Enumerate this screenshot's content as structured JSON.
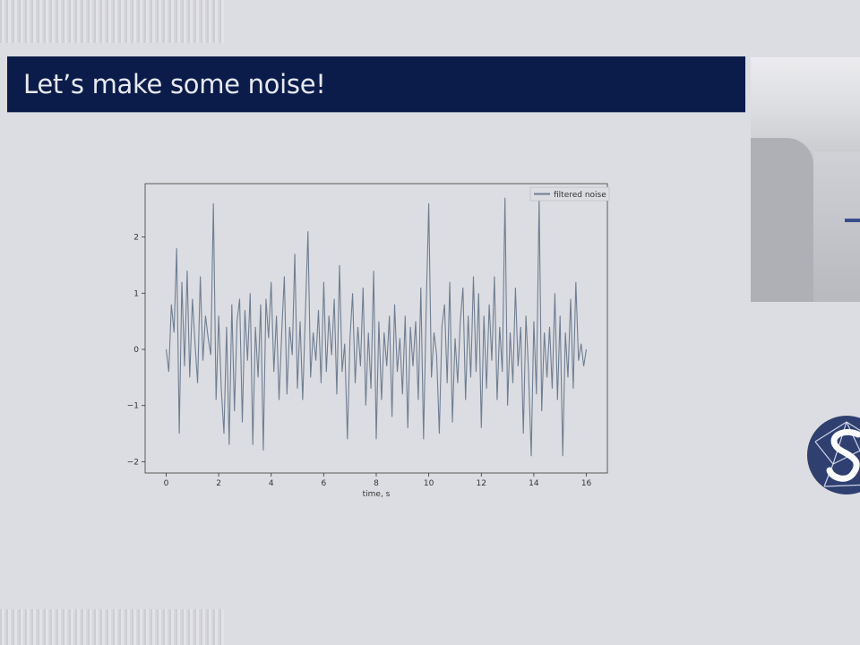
{
  "slide": {
    "title": "Let’s make some noise!"
  },
  "colors": {
    "header_bg": "#0b1c4a",
    "series_line": "#6f7e92",
    "background": "#dcdde2"
  },
  "icons": {
    "logo": "logo-icon",
    "video": "presenter-video"
  },
  "chart_data": {
    "type": "line",
    "title": "",
    "xlabel": "time, s",
    "ylabel": "",
    "xlim": [
      -0.8,
      16.8
    ],
    "ylim": [
      -2.2,
      2.95
    ],
    "xticks": [
      0,
      2,
      4,
      6,
      8,
      10,
      12,
      14,
      16
    ],
    "xtick_labels": [
      "0",
      "2",
      "4",
      "6",
      "8",
      "10",
      "12",
      "14",
      "16"
    ],
    "yticks": [
      -2,
      -1,
      0,
      1,
      2
    ],
    "ytick_labels": [
      "−2",
      "−1",
      "0",
      "1",
      "2"
    ],
    "legend": {
      "position": "top-right",
      "entries": [
        "filtered noise"
      ]
    },
    "series": [
      {
        "name": "filtered noise",
        "x": [
          0,
          0.1,
          0.2,
          0.3,
          0.4,
          0.5,
          0.6,
          0.7,
          0.8,
          0.9,
          1.0,
          1.1,
          1.2,
          1.3,
          1.4,
          1.5,
          1.6,
          1.7,
          1.8,
          1.9,
          2.0,
          2.1,
          2.2,
          2.3,
          2.4,
          2.5,
          2.6,
          2.7,
          2.8,
          2.9,
          3.0,
          3.1,
          3.2,
          3.3,
          3.4,
          3.5,
          3.6,
          3.7,
          3.8,
          3.9,
          4.0,
          4.1,
          4.2,
          4.3,
          4.4,
          4.5,
          4.6,
          4.7,
          4.8,
          4.9,
          5.0,
          5.1,
          5.2,
          5.3,
          5.4,
          5.5,
          5.6,
          5.7,
          5.8,
          5.9,
          6.0,
          6.1,
          6.2,
          6.3,
          6.4,
          6.5,
          6.6,
          6.7,
          6.8,
          6.9,
          7.0,
          7.1,
          7.2,
          7.3,
          7.4,
          7.5,
          7.6,
          7.7,
          7.8,
          7.9,
          8.0,
          8.1,
          8.2,
          8.3,
          8.4,
          8.5,
          8.6,
          8.7,
          8.8,
          8.9,
          9.0,
          9.1,
          9.2,
          9.3,
          9.4,
          9.5,
          9.6,
          9.7,
          9.8,
          9.9,
          10.0,
          10.1,
          10.2,
          10.3,
          10.4,
          10.5,
          10.6,
          10.7,
          10.8,
          10.9,
          11.0,
          11.1,
          11.2,
          11.3,
          11.4,
          11.5,
          11.6,
          11.7,
          11.8,
          11.9,
          12.0,
          12.1,
          12.2,
          12.3,
          12.4,
          12.5,
          12.6,
          12.7,
          12.8,
          12.9,
          13.0,
          13.1,
          13.2,
          13.3,
          13.4,
          13.5,
          13.6,
          13.7,
          13.8,
          13.9,
          14.0,
          14.1,
          14.2,
          14.3,
          14.4,
          14.5,
          14.6,
          14.7,
          14.8,
          14.9,
          15.0,
          15.1,
          15.2,
          15.3,
          15.4,
          15.5,
          15.6,
          15.7,
          15.8,
          15.9,
          16.0
        ],
        "values": [
          0.0,
          -0.4,
          0.8,
          0.3,
          1.8,
          -1.5,
          1.2,
          -0.3,
          1.4,
          -0.5,
          0.9,
          0.1,
          -0.6,
          1.3,
          -0.2,
          0.6,
          0.2,
          -0.1,
          2.6,
          -0.9,
          0.6,
          -0.7,
          -1.5,
          0.4,
          -1.7,
          0.8,
          -1.1,
          0.5,
          0.9,
          -1.3,
          0.7,
          -0.2,
          1.0,
          -1.7,
          0.4,
          -0.5,
          0.8,
          -1.8,
          0.9,
          0.2,
          1.2,
          -0.4,
          0.6,
          -0.9,
          0.3,
          1.3,
          -0.8,
          0.4,
          -0.1,
          1.7,
          -0.7,
          0.5,
          -0.9,
          0.6,
          2.1,
          -0.5,
          0.3,
          -0.2,
          0.7,
          -0.6,
          1.2,
          -0.4,
          0.6,
          -0.1,
          0.9,
          -0.8,
          1.5,
          -0.4,
          0.1,
          -1.6,
          0.2,
          1.0,
          -0.6,
          0.4,
          -0.3,
          1.1,
          -1.0,
          0.3,
          -0.7,
          1.4,
          -1.6,
          0.5,
          -0.9,
          0.3,
          -0.3,
          0.6,
          -1.2,
          0.8,
          -0.4,
          0.2,
          -0.8,
          0.6,
          -1.4,
          0.4,
          -0.3,
          0.5,
          -0.9,
          1.1,
          -1.6,
          0.7,
          2.6,
          -0.5,
          0.3,
          -0.1,
          -1.5,
          0.4,
          0.8,
          -0.6,
          1.2,
          -1.3,
          0.2,
          -0.6,
          0.5,
          1.1,
          -0.9,
          0.6,
          -0.5,
          1.3,
          -0.4,
          1.0,
          -1.4,
          0.6,
          -0.7,
          0.8,
          -0.2,
          1.3,
          -0.9,
          0.4,
          -0.4,
          2.7,
          -1.0,
          0.3,
          -0.6,
          1.1,
          -0.3,
          0.4,
          -1.5,
          0.6,
          -0.4,
          -1.9,
          0.5,
          -0.8,
          2.7,
          -1.1,
          0.3,
          -0.5,
          0.4,
          -0.7,
          1.0,
          -0.9,
          0.6,
          -1.9,
          0.3,
          -0.5,
          0.9,
          -0.7,
          1.2,
          -0.2,
          0.1,
          -0.3,
          0.0
        ]
      }
    ]
  }
}
